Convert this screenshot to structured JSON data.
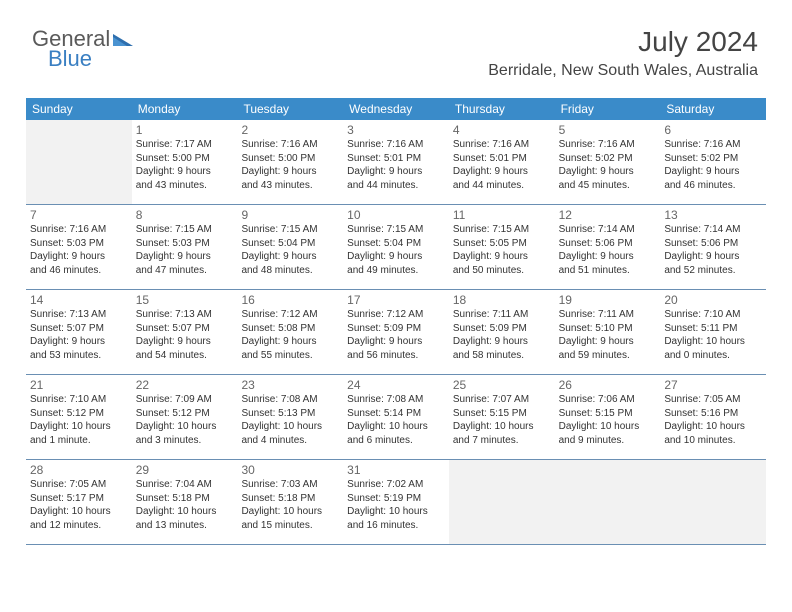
{
  "logo": {
    "word1": "General",
    "word2": "Blue"
  },
  "header": {
    "month_year": "July 2024",
    "location": "Berridale, New South Wales, Australia"
  },
  "colors": {
    "header_bg": "#3a8bc9",
    "header_text": "#ffffff",
    "row_border": "#6a8fb3",
    "shaded_bg": "#f2f2f2",
    "cell_bg": "#ffffff",
    "text_color": "#333333",
    "daynum_color": "#666666"
  },
  "day_names": [
    "Sunday",
    "Monday",
    "Tuesday",
    "Wednesday",
    "Thursday",
    "Friday",
    "Saturday"
  ],
  "weeks": [
    [
      {
        "num": "",
        "lines": []
      },
      {
        "num": "1",
        "lines": [
          "Sunrise: 7:17 AM",
          "Sunset: 5:00 PM",
          "Daylight: 9 hours",
          "and 43 minutes."
        ]
      },
      {
        "num": "2",
        "lines": [
          "Sunrise: 7:16 AM",
          "Sunset: 5:00 PM",
          "Daylight: 9 hours",
          "and 43 minutes."
        ]
      },
      {
        "num": "3",
        "lines": [
          "Sunrise: 7:16 AM",
          "Sunset: 5:01 PM",
          "Daylight: 9 hours",
          "and 44 minutes."
        ]
      },
      {
        "num": "4",
        "lines": [
          "Sunrise: 7:16 AM",
          "Sunset: 5:01 PM",
          "Daylight: 9 hours",
          "and 44 minutes."
        ]
      },
      {
        "num": "5",
        "lines": [
          "Sunrise: 7:16 AM",
          "Sunset: 5:02 PM",
          "Daylight: 9 hours",
          "and 45 minutes."
        ]
      },
      {
        "num": "6",
        "lines": [
          "Sunrise: 7:16 AM",
          "Sunset: 5:02 PM",
          "Daylight: 9 hours",
          "and 46 minutes."
        ]
      }
    ],
    [
      {
        "num": "7",
        "lines": [
          "Sunrise: 7:16 AM",
          "Sunset: 5:03 PM",
          "Daylight: 9 hours",
          "and 46 minutes."
        ]
      },
      {
        "num": "8",
        "lines": [
          "Sunrise: 7:15 AM",
          "Sunset: 5:03 PM",
          "Daylight: 9 hours",
          "and 47 minutes."
        ]
      },
      {
        "num": "9",
        "lines": [
          "Sunrise: 7:15 AM",
          "Sunset: 5:04 PM",
          "Daylight: 9 hours",
          "and 48 minutes."
        ]
      },
      {
        "num": "10",
        "lines": [
          "Sunrise: 7:15 AM",
          "Sunset: 5:04 PM",
          "Daylight: 9 hours",
          "and 49 minutes."
        ]
      },
      {
        "num": "11",
        "lines": [
          "Sunrise: 7:15 AM",
          "Sunset: 5:05 PM",
          "Daylight: 9 hours",
          "and 50 minutes."
        ]
      },
      {
        "num": "12",
        "lines": [
          "Sunrise: 7:14 AM",
          "Sunset: 5:06 PM",
          "Daylight: 9 hours",
          "and 51 minutes."
        ]
      },
      {
        "num": "13",
        "lines": [
          "Sunrise: 7:14 AM",
          "Sunset: 5:06 PM",
          "Daylight: 9 hours",
          "and 52 minutes."
        ]
      }
    ],
    [
      {
        "num": "14",
        "lines": [
          "Sunrise: 7:13 AM",
          "Sunset: 5:07 PM",
          "Daylight: 9 hours",
          "and 53 minutes."
        ]
      },
      {
        "num": "15",
        "lines": [
          "Sunrise: 7:13 AM",
          "Sunset: 5:07 PM",
          "Daylight: 9 hours",
          "and 54 minutes."
        ]
      },
      {
        "num": "16",
        "lines": [
          "Sunrise: 7:12 AM",
          "Sunset: 5:08 PM",
          "Daylight: 9 hours",
          "and 55 minutes."
        ]
      },
      {
        "num": "17",
        "lines": [
          "Sunrise: 7:12 AM",
          "Sunset: 5:09 PM",
          "Daylight: 9 hours",
          "and 56 minutes."
        ]
      },
      {
        "num": "18",
        "lines": [
          "Sunrise: 7:11 AM",
          "Sunset: 5:09 PM",
          "Daylight: 9 hours",
          "and 58 minutes."
        ]
      },
      {
        "num": "19",
        "lines": [
          "Sunrise: 7:11 AM",
          "Sunset: 5:10 PM",
          "Daylight: 9 hours",
          "and 59 minutes."
        ]
      },
      {
        "num": "20",
        "lines": [
          "Sunrise: 7:10 AM",
          "Sunset: 5:11 PM",
          "Daylight: 10 hours",
          "and 0 minutes."
        ]
      }
    ],
    [
      {
        "num": "21",
        "lines": [
          "Sunrise: 7:10 AM",
          "Sunset: 5:12 PM",
          "Daylight: 10 hours",
          "and 1 minute."
        ]
      },
      {
        "num": "22",
        "lines": [
          "Sunrise: 7:09 AM",
          "Sunset: 5:12 PM",
          "Daylight: 10 hours",
          "and 3 minutes."
        ]
      },
      {
        "num": "23",
        "lines": [
          "Sunrise: 7:08 AM",
          "Sunset: 5:13 PM",
          "Daylight: 10 hours",
          "and 4 minutes."
        ]
      },
      {
        "num": "24",
        "lines": [
          "Sunrise: 7:08 AM",
          "Sunset: 5:14 PM",
          "Daylight: 10 hours",
          "and 6 minutes."
        ]
      },
      {
        "num": "25",
        "lines": [
          "Sunrise: 7:07 AM",
          "Sunset: 5:15 PM",
          "Daylight: 10 hours",
          "and 7 minutes."
        ]
      },
      {
        "num": "26",
        "lines": [
          "Sunrise: 7:06 AM",
          "Sunset: 5:15 PM",
          "Daylight: 10 hours",
          "and 9 minutes."
        ]
      },
      {
        "num": "27",
        "lines": [
          "Sunrise: 7:05 AM",
          "Sunset: 5:16 PM",
          "Daylight: 10 hours",
          "and 10 minutes."
        ]
      }
    ],
    [
      {
        "num": "28",
        "lines": [
          "Sunrise: 7:05 AM",
          "Sunset: 5:17 PM",
          "Daylight: 10 hours",
          "and 12 minutes."
        ]
      },
      {
        "num": "29",
        "lines": [
          "Sunrise: 7:04 AM",
          "Sunset: 5:18 PM",
          "Daylight: 10 hours",
          "and 13 minutes."
        ]
      },
      {
        "num": "30",
        "lines": [
          "Sunrise: 7:03 AM",
          "Sunset: 5:18 PM",
          "Daylight: 10 hours",
          "and 15 minutes."
        ]
      },
      {
        "num": "31",
        "lines": [
          "Sunrise: 7:02 AM",
          "Sunset: 5:19 PM",
          "Daylight: 10 hours",
          "and 16 minutes."
        ]
      },
      {
        "num": "",
        "lines": []
      },
      {
        "num": "",
        "lines": []
      },
      {
        "num": "",
        "lines": []
      }
    ]
  ]
}
